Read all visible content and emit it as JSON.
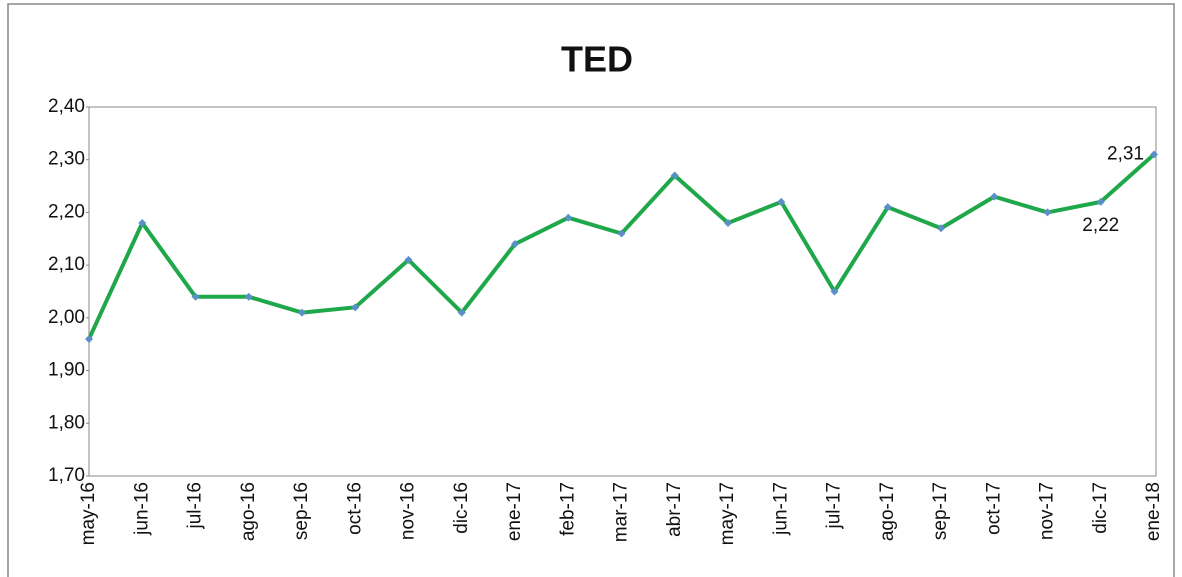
{
  "chart_data": {
    "type": "line",
    "title": "TED",
    "categories": [
      "may-16",
      "jun-16",
      "jul-16",
      "ago-16",
      "sep-16",
      "oct-16",
      "nov-16",
      "dic-16",
      "ene-17",
      "feb-17",
      "mar-17",
      "abr-17",
      "may-17",
      "jun-17",
      "jul-17",
      "ago-17",
      "sep-17",
      "oct-17",
      "nov-17",
      "dic-17",
      "ene-18"
    ],
    "values": [
      1.96,
      2.18,
      2.04,
      2.04,
      2.01,
      2.02,
      2.11,
      2.01,
      2.14,
      2.19,
      2.16,
      2.27,
      2.18,
      2.22,
      2.05,
      2.21,
      2.17,
      2.23,
      2.2,
      2.22,
      2.31
    ],
    "value_labels": [
      null,
      null,
      null,
      null,
      null,
      null,
      null,
      null,
      null,
      null,
      null,
      null,
      null,
      null,
      null,
      null,
      null,
      null,
      null,
      "2,22",
      "2,31"
    ],
    "color": "#1fa84a",
    "marker_color": "#5b8fc7",
    "ylim": [
      1.7,
      2.4
    ],
    "yticks": [
      {
        "value": 1.7,
        "label": "1,70"
      },
      {
        "value": 1.8,
        "label": "1,80"
      },
      {
        "value": 1.9,
        "label": "1,90"
      },
      {
        "value": 2.0,
        "label": "2,00"
      },
      {
        "value": 2.1,
        "label": "2,10"
      },
      {
        "value": 2.2,
        "label": "2,20"
      },
      {
        "value": 2.3,
        "label": "2,30"
      },
      {
        "value": 2.4,
        "label": "2,40"
      }
    ],
    "grid": false
  }
}
